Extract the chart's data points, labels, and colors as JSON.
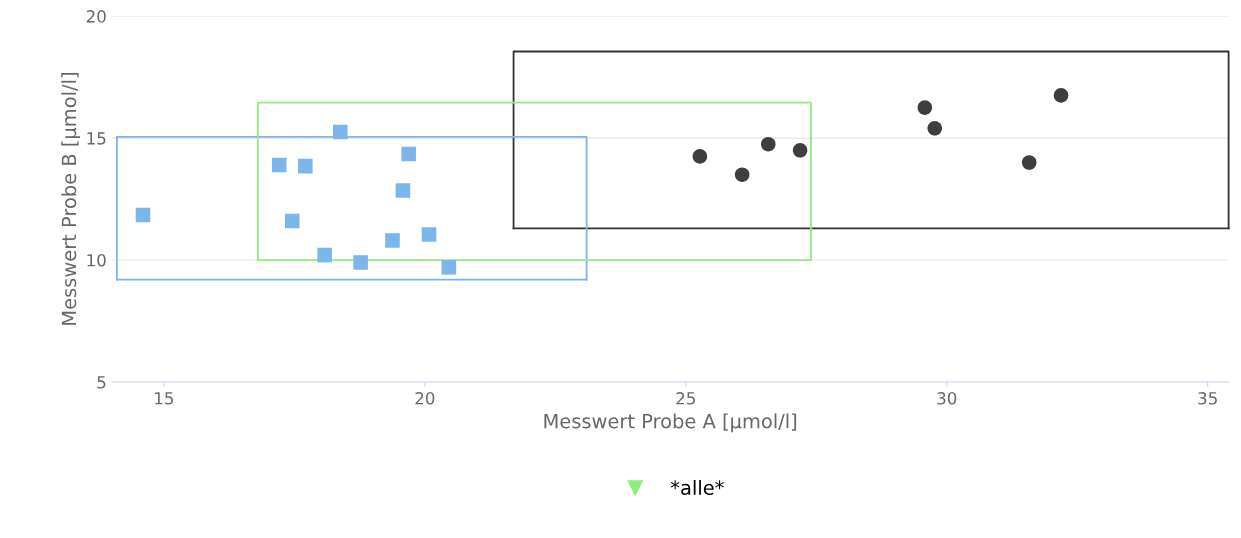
{
  "chart_data": {
    "type": "scatter",
    "xlabel": "Messwert Probe A [µmol/l]",
    "ylabel": "Messwert Probe B [µmol/l]",
    "xlim": [
      14,
      35.4
    ],
    "xticks": [
      15,
      20,
      25,
      30,
      35
    ],
    "ylim": [
      5,
      20
    ],
    "yticks": [
      5,
      10,
      15,
      20
    ],
    "grid": "y",
    "legend": "bottom",
    "series": [
      {
        "type": "scatter",
        "marker": "circle",
        "color": "#3d3d42",
        "x": [
          25.27,
          26.08,
          26.58,
          27.19,
          29.58,
          29.77,
          31.58,
          32.19
        ],
        "values": [
          14.25,
          13.5,
          14.75,
          14.5,
          16.25,
          15.4,
          14.0,
          16.75
        ]
      },
      {
        "type": "scatter",
        "marker": "square",
        "color": "#7cb5ec",
        "x": [
          14.6,
          17.21,
          17.71,
          17.46,
          18.38,
          18.08,
          18.77,
          19.38,
          19.58,
          19.69,
          20.08,
          20.46
        ],
        "values": [
          11.85,
          13.9,
          13.85,
          11.6,
          15.25,
          10.2,
          9.9,
          10.8,
          12.85,
          14.35,
          11.05,
          9.7
        ]
      },
      {
        "type": "line",
        "color": "#333333",
        "x": [
          21.7,
          21.7,
          35.4,
          35.4
        ],
        "values": [
          11.3,
          18.55,
          18.55,
          11.3
        ]
      },
      {
        "type": "line",
        "color": "#333333",
        "x": [
          21.7,
          35.4
        ],
        "values": [
          11.3,
          11.3
        ]
      },
      {
        "type": "line",
        "color": "#7cb5ec",
        "x": [
          14.1,
          14.1,
          23.1,
          23.1
        ],
        "values": [
          9.2,
          15.05,
          15.05,
          9.2
        ]
      },
      {
        "type": "line",
        "color": "#7cb5ec",
        "x": [
          14.1,
          23.1
        ],
        "values": [
          9.2,
          9.2
        ]
      },
      {
        "type": "line",
        "name": "*alle*",
        "color": "#90ed7d",
        "x": [
          16.8,
          16.8,
          27.4,
          27.4
        ],
        "values": [
          10.0,
          16.45,
          16.45,
          10.0
        ]
      },
      {
        "type": "line",
        "color": "#90ed7d",
        "x": [
          16.8,
          27.4
        ],
        "values": [
          10.0,
          10.0
        ]
      }
    ]
  }
}
